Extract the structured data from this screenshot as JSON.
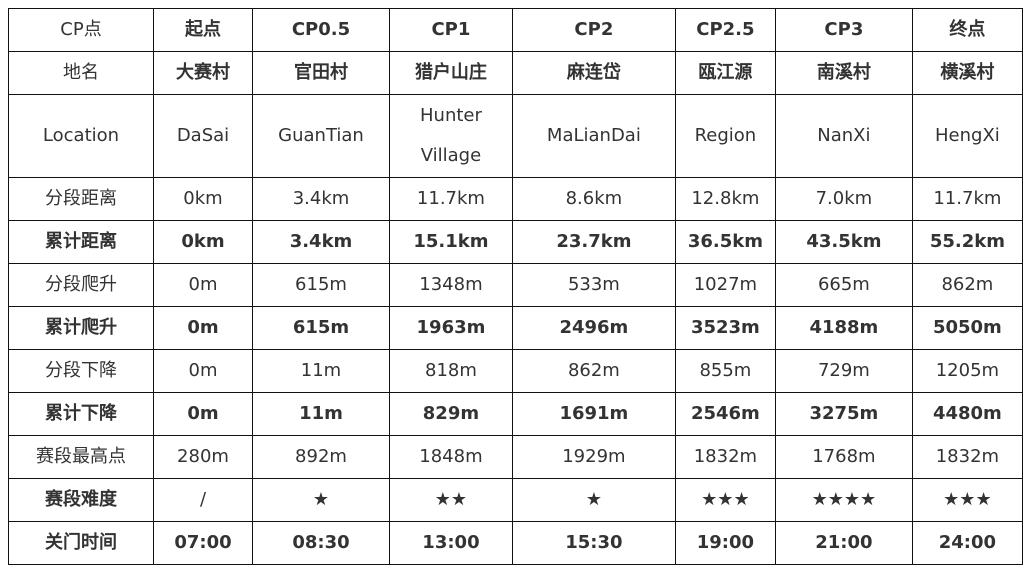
{
  "rows": [
    {
      "label": "CP点",
      "bold": false,
      "values": [
        "起点",
        "CP0.5",
        "CP1",
        "CP2",
        "CP2.5",
        "CP3",
        "终点"
      ],
      "values_bold": true
    },
    {
      "label": "地名",
      "bold": false,
      "values": [
        "大赛村",
        "官田村",
        "猎户山庄",
        "麻连岱",
        "瓯江源",
        "南溪村",
        "横溪村"
      ],
      "values_bold": true
    },
    {
      "label": "Location",
      "bold": false,
      "values": [
        "DaSai",
        "GuanTian",
        "Hunter Village",
        "MaLianDai",
        "Region",
        "NanXi",
        "HengXi"
      ]
    },
    {
      "label": "分段距离",
      "bold": false,
      "values": [
        "0km",
        "3.4km",
        "11.7km",
        "8.6km",
        "12.8km",
        "7.0km",
        "11.7km"
      ]
    },
    {
      "label": "累计距离",
      "bold": true,
      "values": [
        "0km",
        "3.4km",
        "15.1km",
        "23.7km",
        "36.5km",
        "43.5km",
        "55.2km"
      ]
    },
    {
      "label": "分段爬升",
      "bold": false,
      "values": [
        "0m",
        "615m",
        "1348m",
        "533m",
        "1027m",
        "665m",
        "862m"
      ]
    },
    {
      "label": "累计爬升",
      "bold": true,
      "values": [
        "0m",
        "615m",
        "1963m",
        "2496m",
        "3523m",
        "4188m",
        "5050m"
      ]
    },
    {
      "label": "分段下降",
      "bold": false,
      "values": [
        "0m",
        "11m",
        "818m",
        "862m",
        "855m",
        "729m",
        "1205m"
      ]
    },
    {
      "label": "累计下降",
      "bold": true,
      "values": [
        "0m",
        "11m",
        "829m",
        "1691m",
        "2546m",
        "3275m",
        "4480m"
      ]
    },
    {
      "label": "赛段最高点",
      "bold": false,
      "values": [
        "280m",
        "892m",
        "1848m",
        "1929m",
        "1832m",
        "1768m",
        "1832m"
      ]
    },
    {
      "label": "赛段难度",
      "bold": true,
      "values": [
        "/",
        "★",
        "★★",
        "★",
        "★★★",
        "★★★★",
        "★★★"
      ],
      "values_bold": false
    },
    {
      "label": "关门时间",
      "bold": true,
      "values": [
        "07:00",
        "08:30",
        "13:00",
        "15:30",
        "19:00",
        "21:00",
        "24:00"
      ]
    }
  ]
}
